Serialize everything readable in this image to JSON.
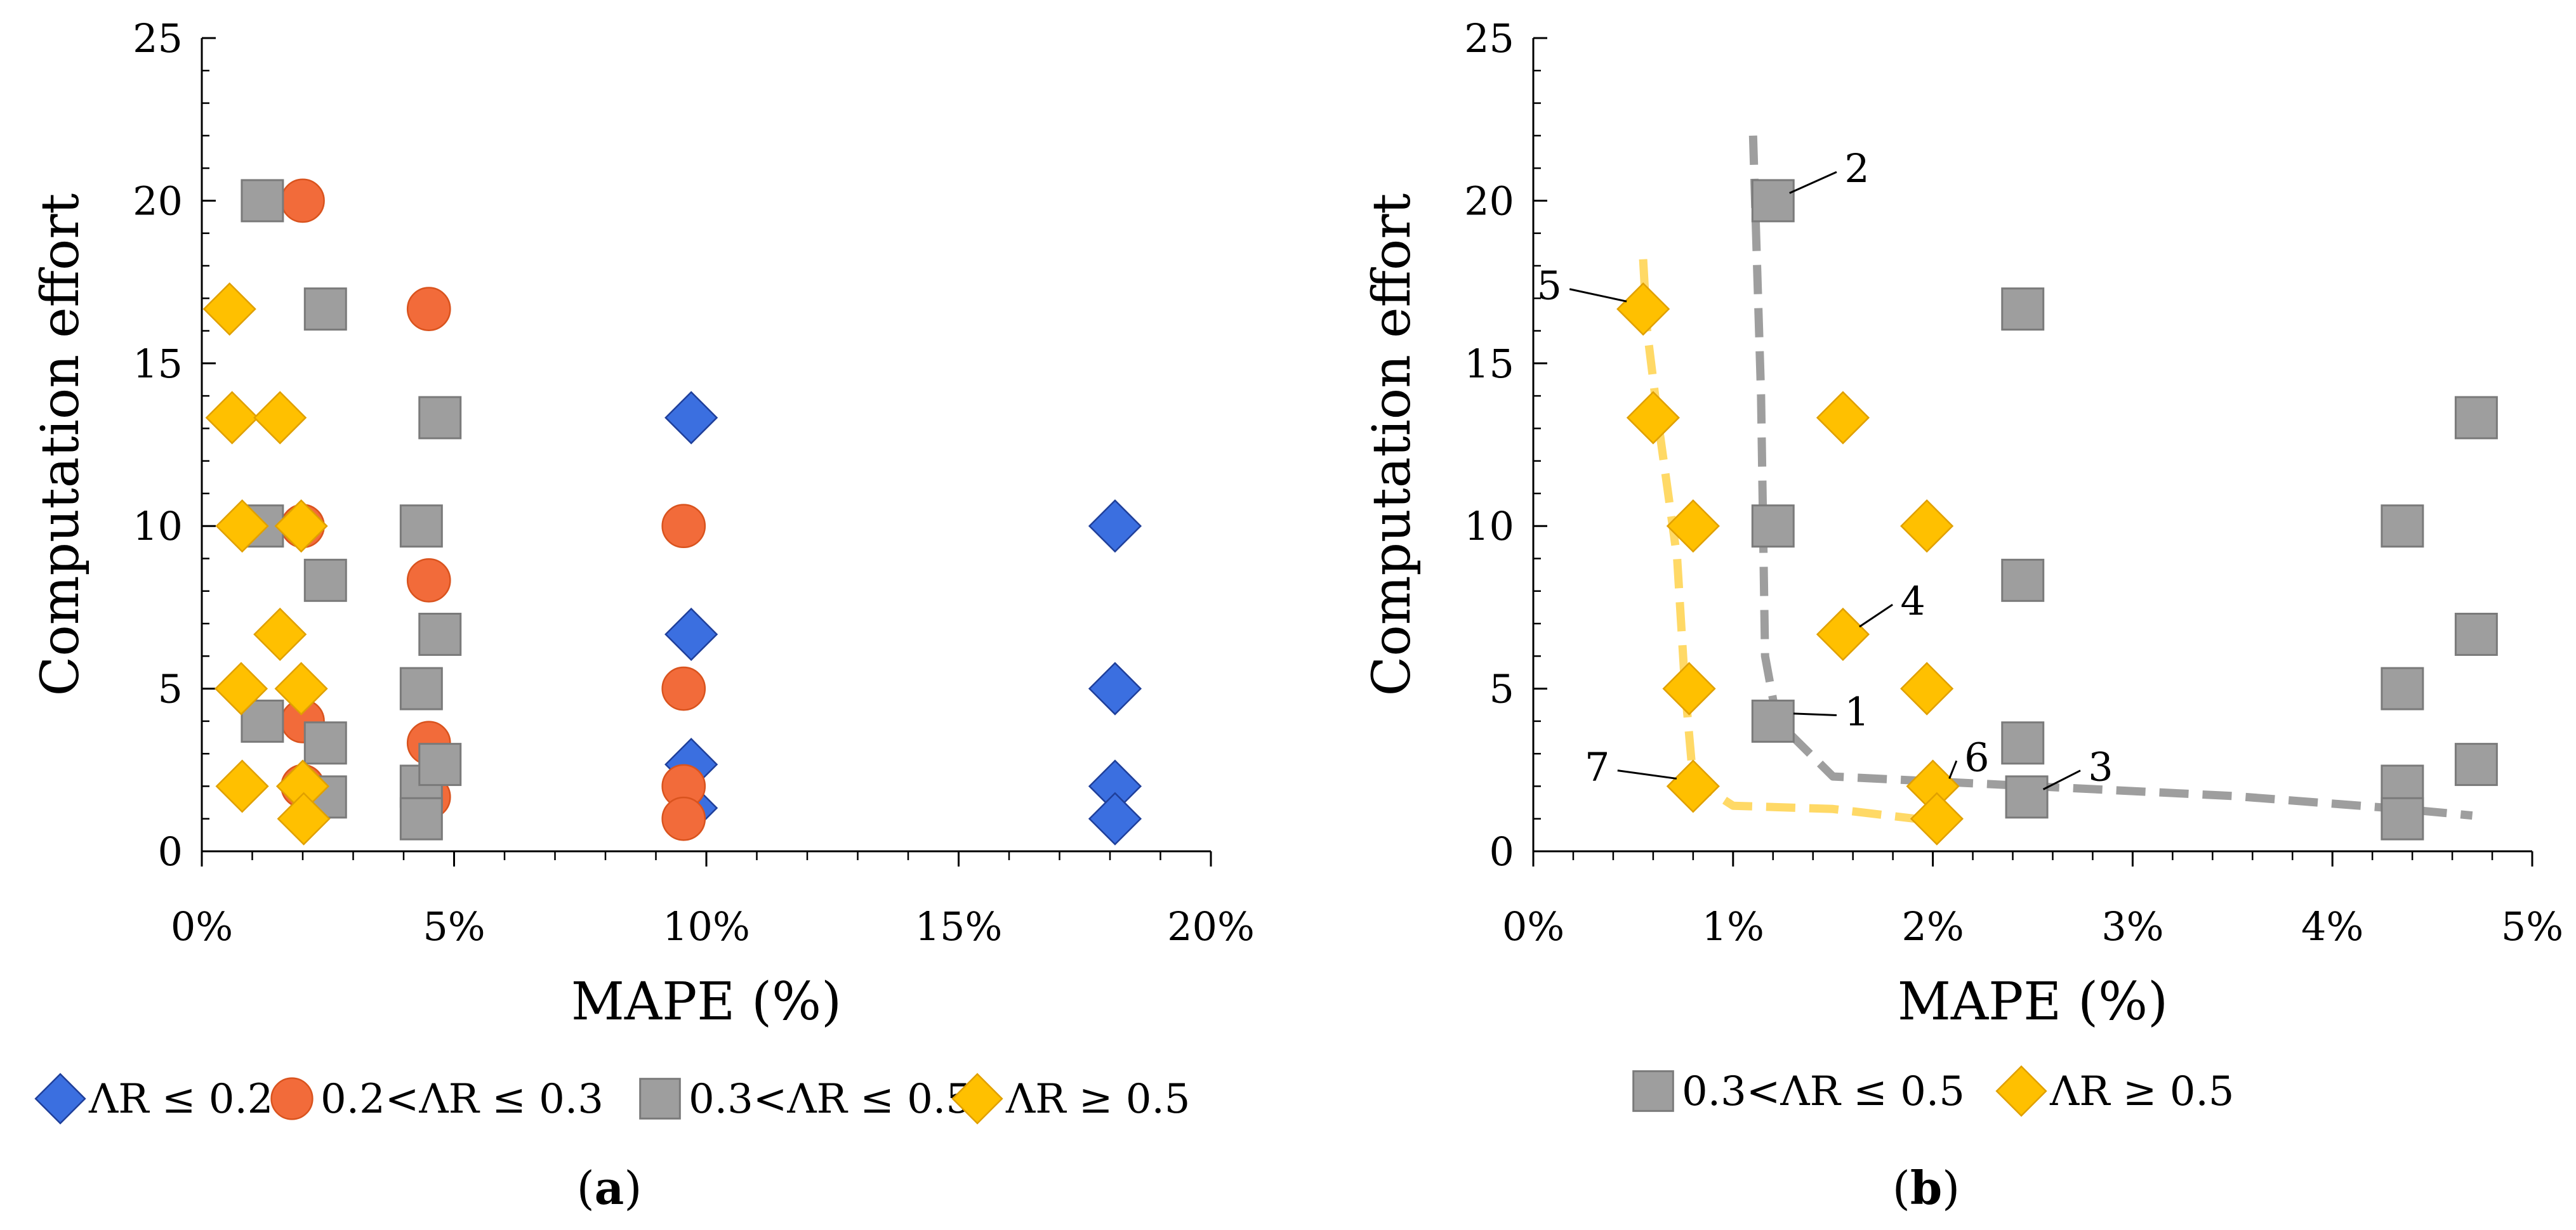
{
  "chart_data": [
    {
      "panel_label_parts": [
        "(",
        "a",
        ")"
      ],
      "type": "scatter",
      "xlabel": "MAPE (%)",
      "ylabel": "Computation effort",
      "xlim": [
        0,
        20
      ],
      "ylim": [
        0,
        25
      ],
      "x_ticks": [
        0,
        5,
        10,
        15,
        20
      ],
      "x_tick_labels": [
        "0%",
        "5%",
        "10%",
        "15%",
        "20%"
      ],
      "y_ticks": [
        0,
        5,
        10,
        15,
        20,
        25
      ],
      "y_tick_labels": [
        "0",
        "5",
        "10",
        "15",
        "20",
        "25"
      ],
      "grid": false,
      "legend_position": "bottom",
      "series": [
        {
          "name": "ΛR ≤ 0.2",
          "marker": "diamond",
          "color": "#3b6fe0",
          "points": [
            [
              9.7,
              13.33
            ],
            [
              9.7,
              6.67
            ],
            [
              9.7,
              2.67
            ],
            [
              9.7,
              1.33
            ],
            [
              18.1,
              10
            ],
            [
              18.1,
              5
            ],
            [
              18.1,
              2
            ],
            [
              18.1,
              1
            ]
          ]
        },
        {
          "name": "0.2<ΛR ≤ 0.3",
          "marker": "circle",
          "color": "#f26b3a",
          "points": [
            [
              2.0,
              20
            ],
            [
              2.0,
              10
            ],
            [
              2.0,
              4
            ],
            [
              2.0,
              2
            ],
            [
              4.5,
              16.67
            ],
            [
              4.5,
              8.33
            ],
            [
              4.5,
              3.33
            ],
            [
              4.5,
              1.67
            ],
            [
              9.55,
              10
            ],
            [
              9.55,
              5
            ],
            [
              9.55,
              2
            ],
            [
              9.55,
              1
            ]
          ]
        },
        {
          "name": "0.3<ΛR ≤ 0.5",
          "marker": "square",
          "color": "#9e9e9e",
          "points": [
            [
              1.2,
              20
            ],
            [
              1.2,
              10
            ],
            [
              1.2,
              4
            ],
            [
              2.45,
              16.67
            ],
            [
              2.45,
              8.33
            ],
            [
              2.45,
              3.33
            ],
            [
              2.45,
              1.67
            ],
            [
              4.35,
              10
            ],
            [
              4.35,
              5
            ],
            [
              4.35,
              2
            ],
            [
              4.35,
              1
            ],
            [
              4.72,
              13.33
            ],
            [
              4.72,
              6.67
            ],
            [
              4.72,
              2.67
            ]
          ]
        },
        {
          "name": "ΛR ≥ 0.5",
          "marker": "diamond",
          "color": "#ffc000",
          "points": [
            [
              0.55,
              16.67
            ],
            [
              0.6,
              13.33
            ],
            [
              0.8,
              10
            ],
            [
              0.78,
              5
            ],
            [
              0.8,
              2
            ],
            [
              1.55,
              13.33
            ],
            [
              1.55,
              6.67
            ],
            [
              1.97,
              10
            ],
            [
              1.97,
              5
            ],
            [
              2.0,
              2
            ],
            [
              2.02,
              1
            ]
          ]
        }
      ]
    },
    {
      "panel_label_parts": [
        "(",
        "b",
        ")"
      ],
      "type": "scatter",
      "xlabel": "MAPE (%)",
      "ylabel": "Computation effort",
      "xlim": [
        0,
        5
      ],
      "ylim": [
        0,
        25
      ],
      "x_ticks": [
        0,
        1,
        2,
        3,
        4,
        5
      ],
      "x_tick_labels": [
        "0%",
        "1%",
        "2%",
        "3%",
        "4%",
        "5%"
      ],
      "y_ticks": [
        0,
        5,
        10,
        15,
        20,
        25
      ],
      "y_tick_labels": [
        "0",
        "5",
        "10",
        "15",
        "20",
        "25"
      ],
      "grid": false,
      "legend_position": "bottom",
      "series": [
        {
          "name": "0.3<ΛR ≤ 0.5",
          "marker": "square",
          "color": "#9e9e9e",
          "points": [
            [
              1.2,
              20
            ],
            [
              1.2,
              10
            ],
            [
              1.2,
              4
            ],
            [
              2.45,
              16.67
            ],
            [
              2.45,
              3.33
            ],
            [
              2.45,
              8.33
            ],
            [
              2.47,
              1.67
            ],
            [
              4.35,
              10
            ],
            [
              4.35,
              5
            ],
            [
              4.35,
              2
            ],
            [
              4.35,
              1
            ],
            [
              4.72,
              13.33
            ],
            [
              4.72,
              6.67
            ],
            [
              4.72,
              2.67
            ]
          ]
        },
        {
          "name": "ΛR ≥ 0.5",
          "marker": "diamond",
          "color": "#ffc000",
          "points": [
            [
              0.55,
              16.67
            ],
            [
              0.6,
              13.33
            ],
            [
              0.8,
              10
            ],
            [
              0.78,
              5
            ],
            [
              0.8,
              2
            ],
            [
              1.55,
              13.33
            ],
            [
              1.55,
              6.67
            ],
            [
              1.97,
              10
            ],
            [
              1.97,
              5
            ],
            [
              2.0,
              2
            ],
            [
              2.02,
              1
            ]
          ]
        }
      ],
      "pareto_fronts": [
        {
          "series": "0.3<ΛR ≤ 0.5",
          "color": "#9e9e9e",
          "points": [
            [
              1.1,
              22
            ],
            [
              1.14,
              14
            ],
            [
              1.16,
              6
            ],
            [
              1.22,
              4
            ],
            [
              1.5,
              2.3
            ],
            [
              2.5,
              2.0
            ],
            [
              3.5,
              1.7
            ],
            [
              4.35,
              1.3
            ],
            [
              4.7,
              1.1
            ]
          ]
        },
        {
          "series": "ΛR ≥ 0.5",
          "color": "#ffd966",
          "points": [
            [
              0.55,
              18.2
            ],
            [
              0.57,
              16
            ],
            [
              0.63,
              13
            ],
            [
              0.72,
              9
            ],
            [
              0.76,
              5
            ],
            [
              0.8,
              2.2
            ],
            [
              1.0,
              1.4
            ],
            [
              1.5,
              1.3
            ],
            [
              2.05,
              0.9
            ]
          ]
        }
      ],
      "annotations": [
        {
          "label": "1",
          "target": [
            1.22,
            4
          ],
          "text_at": [
            1.62,
            4.3
          ]
        },
        {
          "label": "2",
          "target": [
            1.2,
            20
          ],
          "text_at": [
            1.62,
            21.0
          ]
        },
        {
          "label": "3",
          "target": [
            2.47,
            1.67
          ],
          "text_at": [
            2.84,
            2.6
          ]
        },
        {
          "label": "4",
          "target": [
            1.55,
            6.67
          ],
          "text_at": [
            1.9,
            7.7
          ]
        },
        {
          "label": "5",
          "target": [
            0.55,
            16.67
          ],
          "text_at": [
            0.08,
            17.4
          ]
        },
        {
          "label": "6",
          "target": [
            2.0,
            2
          ],
          "text_at": [
            2.22,
            2.9
          ]
        },
        {
          "label": "7",
          "target": [
            0.8,
            2
          ],
          "text_at": [
            0.32,
            2.6
          ]
        }
      ]
    }
  ]
}
